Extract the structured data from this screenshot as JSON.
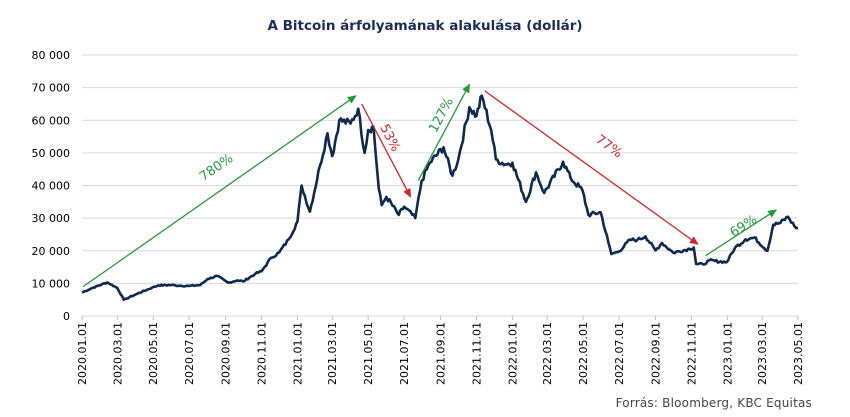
{
  "chart_data": {
    "type": "line",
    "title": "A Bitcoin árfolyamának alakulása (dollár)",
    "ylim": [
      0,
      80000
    ],
    "yticks": [
      0,
      10000,
      20000,
      30000,
      40000,
      50000,
      60000,
      70000,
      80000
    ],
    "ytick_labels": [
      "0",
      "10 000",
      "20 000",
      "30 000",
      "40 000",
      "50 000",
      "60 000",
      "70 000",
      "80 000"
    ],
    "xticks": [
      "2020.01.01",
      "2020.03.01",
      "2020.05.01",
      "2020.07.01",
      "2020.09.01",
      "2020.11.01",
      "2021.01.01",
      "2021.03.01",
      "2021.05.01",
      "2021.07.01",
      "2021.09.01",
      "2021.11.01",
      "2022.01.01",
      "2022.03.01",
      "2022.05.01",
      "2022.07.01",
      "2022.09.01",
      "2022.11.01",
      "2023.01.01",
      "2023.03.01",
      "2023.05.01"
    ],
    "xlim": [
      "2020.01.01",
      "2023.05.01"
    ],
    "grid": "horizontal",
    "line_color": "#0e2a4f",
    "series": [
      {
        "x": [
          "2020.01.01",
          "2020.01.20",
          "2020.02.13",
          "2020.03.01",
          "2020.03.12",
          "2020.03.16",
          "2020.04.01",
          "2020.04.29",
          "2020.05.10",
          "2020.06.01",
          "2020.06.15",
          "2020.07.01",
          "2020.07.20",
          "2020.08.01",
          "2020.08.17",
          "2020.09.05",
          "2020.09.20",
          "2020.10.01",
          "2020.10.21",
          "2020.11.01",
          "2020.11.17",
          "2020.12.01",
          "2020.12.17",
          "2021.01.01",
          "2021.01.08",
          "2021.01.22",
          "2021.02.08",
          "2021.02.21",
          "2021.03.01",
          "2021.03.13",
          "2021.04.01",
          "2021.04.14",
          "2021.04.25",
          "2021.05.01",
          "2021.05.10",
          "2021.05.19",
          "2021.05.24",
          "2021.06.01",
          "2021.06.22",
          "2021.07.01",
          "2021.07.20",
          "2021.07.31",
          "2021.08.14",
          "2021.09.06",
          "2021.09.21",
          "2021.10.01",
          "2021.10.20",
          "2021.11.01",
          "2021.11.10",
          "2021.11.26",
          "2021.12.04",
          "2021.12.20",
          "2022.01.01",
          "2022.01.24",
          "2022.02.10",
          "2022.02.24",
          "2022.03.28",
          "2022.04.10",
          "2022.04.30",
          "2022.05.10",
          "2022.05.31",
          "2022.06.13",
          "2022.06.18",
          "2022.07.01",
          "2022.07.20",
          "2022.08.01",
          "2022.08.15",
          "2022.09.01",
          "2022.09.12",
          "2022.10.01",
          "2022.10.29",
          "2022.11.05",
          "2022.11.09",
          "2022.11.21",
          "2022.12.01",
          "2022.12.31",
          "2023.01.14",
          "2023.02.01",
          "2023.02.16",
          "2023.03.10",
          "2023.03.20",
          "2023.04.01",
          "2023.04.14",
          "2023.04.25",
          "2023.05.01"
        ],
        "y": [
          7200,
          8700,
          10300,
          8600,
          5000,
          5300,
          6600,
          8700,
          9400,
          9500,
          9300,
          9200,
          9500,
          11300,
          12300,
          10200,
          10900,
          10600,
          12900,
          13700,
          17800,
          19500,
          23500,
          29000,
          40000,
          32000,
          46000,
          56000,
          49000,
          60000,
          59000,
          63500,
          50000,
          57000,
          58000,
          39000,
          34000,
          36500,
          31000,
          33500,
          30000,
          41500,
          47000,
          51700,
          43000,
          48000,
          64000,
          61300,
          67500,
          57000,
          48000,
          46500,
          47000,
          35000,
          44000,
          37700,
          47300,
          42200,
          38500,
          31000,
          31800,
          22500,
          19000,
          19800,
          23400,
          23300,
          24400,
          20100,
          22400,
          19400,
          20600,
          21000,
          16000,
          15800,
          17000,
          16500,
          20900,
          23500,
          24000,
          20000,
          28000,
          28500,
          30400,
          27500,
          27000
        ]
      }
    ],
    "annotations": [
      {
        "text": "780%",
        "color": "#239a3a"
      },
      {
        "text": "53%",
        "color": "#d2262a"
      },
      {
        "text": "127%",
        "color": "#239a3a"
      },
      {
        "text": "77%",
        "color": "#d2262a"
      },
      {
        "text": "69%",
        "color": "#239a3a"
      }
    ],
    "source": "Forrás: Bloomberg,  KBC Equitas"
  }
}
